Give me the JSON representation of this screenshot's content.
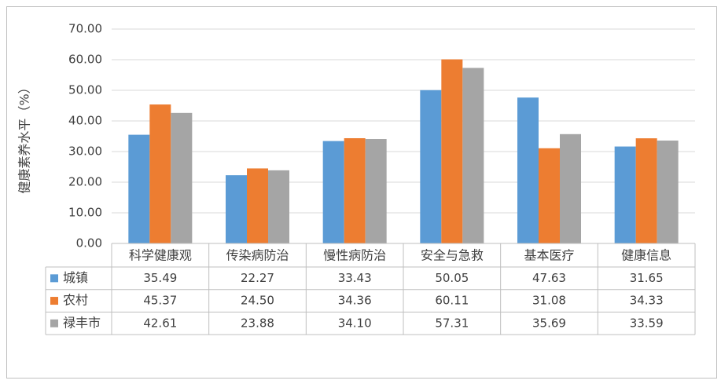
{
  "chart_data": {
    "type": "bar",
    "y_axis_label": "健康素养水平（%）",
    "categories": [
      "科学健康观",
      "传染病防治",
      "慢性病防治",
      "安全与急救",
      "基本医疗",
      "健康信息"
    ],
    "series": [
      {
        "name": "城镇",
        "color": "#5b9bd5",
        "values": [
          35.49,
          22.27,
          33.43,
          50.05,
          47.63,
          31.65
        ],
        "value_labels": [
          "35.49",
          "22.27",
          "33.43",
          "50.05",
          "47.63",
          "31.65"
        ]
      },
      {
        "name": "农村",
        "color": "#ed7d31",
        "values": [
          45.37,
          24.5,
          34.36,
          60.11,
          31.08,
          34.33
        ],
        "value_labels": [
          "45.37",
          "24.50",
          "34.36",
          "60.11",
          "31.08",
          "34.33"
        ]
      },
      {
        "name": "禄丰市",
        "color": "#a5a5a5",
        "values": [
          42.61,
          23.88,
          34.1,
          57.31,
          35.69,
          33.59
        ],
        "value_labels": [
          "42.61",
          "23.88",
          "34.10",
          "57.31",
          "35.69",
          "33.59"
        ]
      }
    ],
    "ylim": [
      0,
      70
    ],
    "yticks": [
      {
        "value": 0,
        "label": "0.00"
      },
      {
        "value": 10,
        "label": "10.00"
      },
      {
        "value": 20,
        "label": "20.00"
      },
      {
        "value": 30,
        "label": "30.00"
      },
      {
        "value": 40,
        "label": "40.00"
      },
      {
        "value": 50,
        "label": "50.00"
      },
      {
        "value": 60,
        "label": "60.00"
      },
      {
        "value": 70,
        "label": "70.00"
      }
    ],
    "grid": true
  }
}
